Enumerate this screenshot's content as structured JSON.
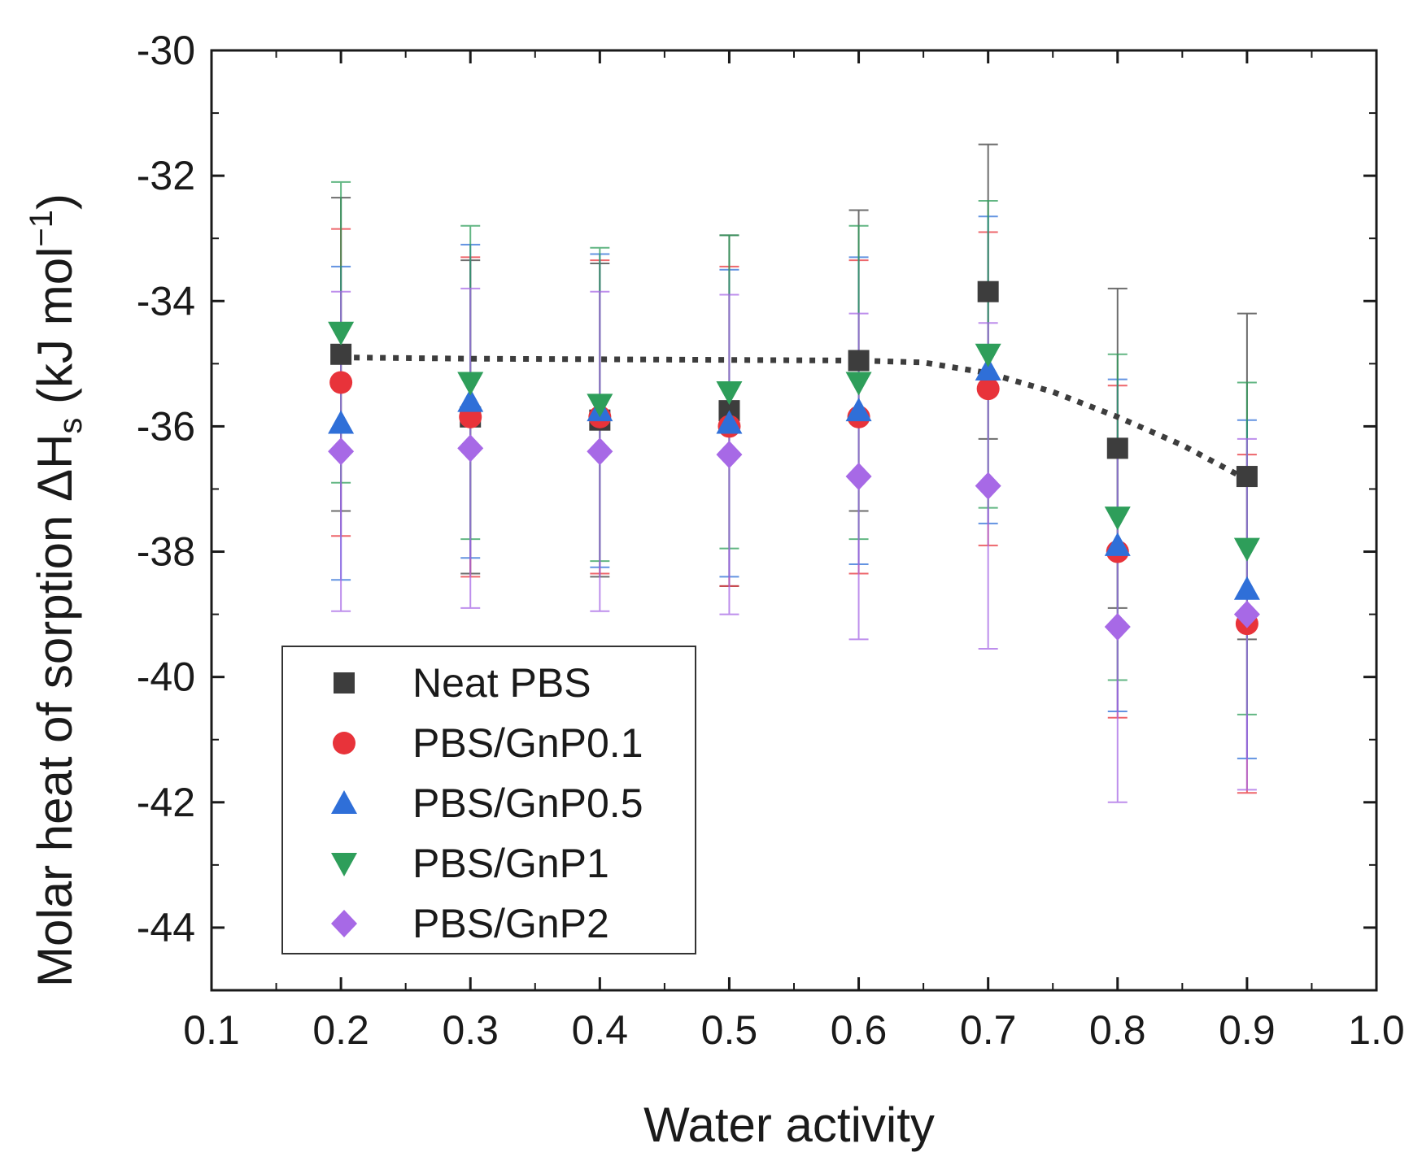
{
  "chart_data": {
    "type": "scatter",
    "title": "",
    "xlabel": "Water activity",
    "ylabel_parts": [
      "Molar heat of sorption ΔH",
      "s",
      " (kJ mol",
      "−1",
      ")"
    ],
    "xlim": [
      0.1,
      1.0
    ],
    "ylim": [
      -45,
      -30
    ],
    "xticks": [
      0.1,
      0.2,
      0.3,
      0.4,
      0.5,
      0.6,
      0.7,
      0.8,
      0.9,
      1.0
    ],
    "xtick_labels": [
      "0.1",
      "0.2",
      "0.3",
      "0.4",
      "0.5",
      "0.6",
      "0.7",
      "0.8",
      "0.9",
      "1.0"
    ],
    "yticks": [
      -30,
      -32,
      -34,
      -36,
      -38,
      -40,
      -42,
      -44
    ],
    "ytick_labels": [
      "-30",
      "-32",
      "-34",
      "-36",
      "-38",
      "-40",
      "-42",
      "-44"
    ],
    "grid": false,
    "legend_position": "bottom-left",
    "x": [
      0.2,
      0.3,
      0.4,
      0.5,
      0.6,
      0.7,
      0.8,
      0.9
    ],
    "series": [
      {
        "name": "Neat PBS",
        "marker": "square",
        "color": "#3d3d3d",
        "values": [
          -34.85,
          -35.85,
          -35.9,
          -35.75,
          -34.95,
          -33.85,
          -36.35,
          -36.8
        ],
        "err": [
          2.5,
          2.5,
          2.5,
          2.8,
          2.4,
          2.35,
          2.55,
          2.6
        ]
      },
      {
        "name": "PBS/GnP0.1",
        "marker": "circle",
        "color": "#e8333a",
        "values": [
          -35.3,
          -35.85,
          -35.85,
          -36.0,
          -35.85,
          -35.4,
          -38.0,
          -39.15
        ],
        "err": [
          2.45,
          2.55,
          2.5,
          2.55,
          2.5,
          2.5,
          2.65,
          2.7
        ]
      },
      {
        "name": "PBS/GnP0.5",
        "marker": "triangle-up",
        "color": "#2f6fd8",
        "values": [
          -35.95,
          -35.6,
          -35.75,
          -35.95,
          -35.75,
          -35.1,
          -37.9,
          -38.6
        ],
        "err": [
          2.5,
          2.5,
          2.5,
          2.45,
          2.45,
          2.45,
          2.65,
          2.7
        ]
      },
      {
        "name": "PBS/GnP1",
        "marker": "triangle-down",
        "color": "#2e9e5a",
        "values": [
          -34.5,
          -35.3,
          -35.65,
          -35.45,
          -35.3,
          -34.85,
          -37.45,
          -37.95
        ],
        "err": [
          2.4,
          2.5,
          2.5,
          2.5,
          2.5,
          2.45,
          2.6,
          2.65
        ]
      },
      {
        "name": "PBS/GnP2",
        "marker": "diamond",
        "color": "#a769e6",
        "values": [
          -36.4,
          -36.35,
          -36.4,
          -36.45,
          -36.8,
          -36.95,
          -39.2,
          -39.0
        ],
        "err": [
          2.55,
          2.55,
          2.55,
          2.55,
          2.6,
          2.6,
          2.8,
          2.8
        ]
      }
    ],
    "fit_line": {
      "name": "trend",
      "style": "dotted",
      "color": "#3d3d3d",
      "x": [
        0.2,
        0.3,
        0.4,
        0.5,
        0.6,
        0.65,
        0.7,
        0.75,
        0.8,
        0.85,
        0.9
      ],
      "y": [
        -34.9,
        -34.92,
        -34.93,
        -34.94,
        -34.95,
        -34.98,
        -35.15,
        -35.45,
        -35.85,
        -36.3,
        -36.85
      ]
    }
  }
}
